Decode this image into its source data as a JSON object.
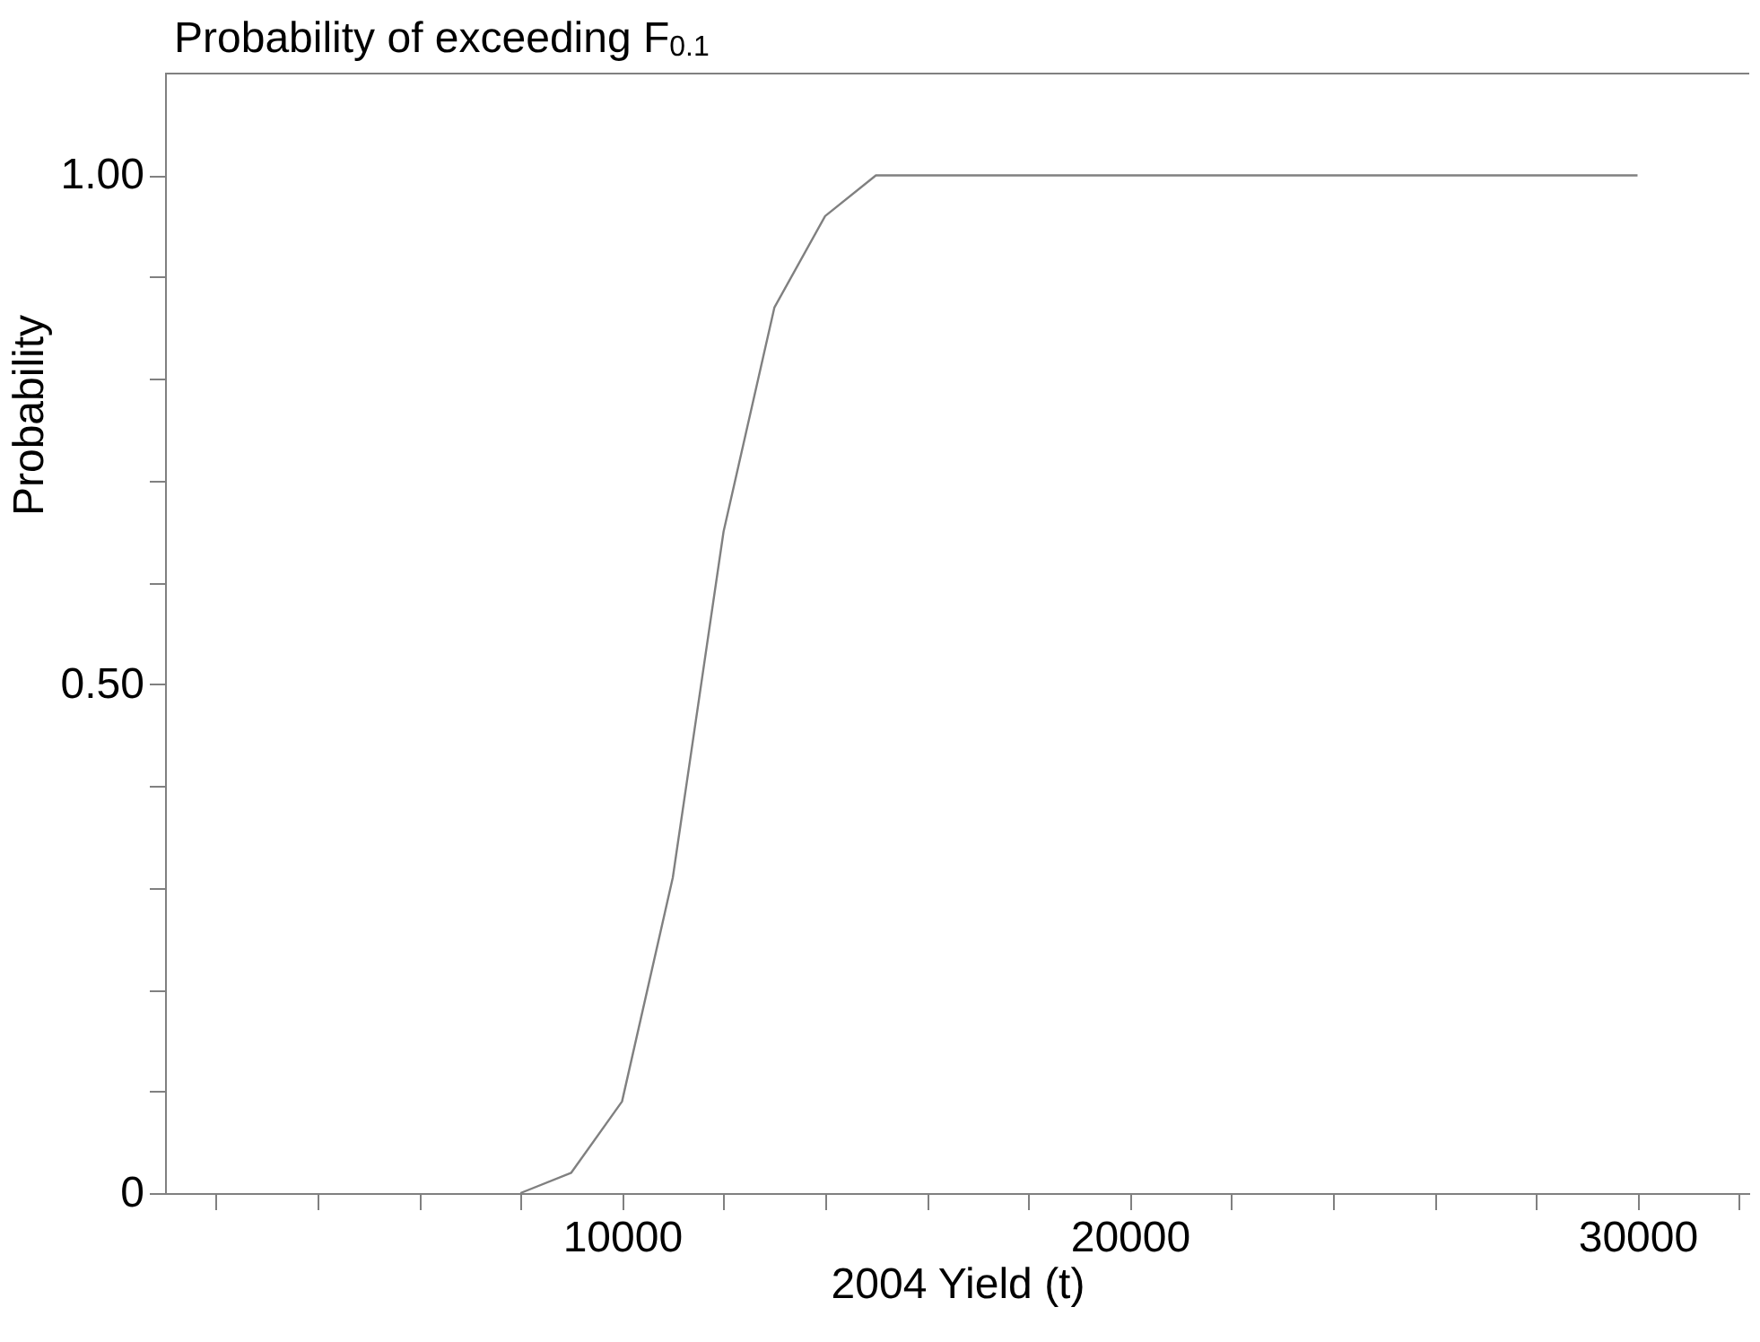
{
  "chart_data": {
    "type": "line",
    "title": "Probability of exceeding F$_{0.1}$",
    "xlabel": "2004 Yield (t)",
    "ylabel": "Probability",
    "x": [
      8000,
      9000,
      10000,
      11000,
      12000,
      13000,
      14000,
      15000,
      16000,
      30000
    ],
    "series": [
      {
        "color": "#808080",
        "values": [
          0,
          0.02,
          0.09,
          0.31,
          0.65,
          0.87,
          0.96,
          1.0,
          1.0,
          1.0
        ]
      }
    ],
    "xlim": [
      1000,
      32200
    ],
    "xticks": [
      {
        "value": 2000,
        "label": null
      },
      {
        "value": 4000,
        "label": null
      },
      {
        "value": 6000,
        "label": null
      },
      {
        "value": 8000,
        "label": null
      },
      10000,
      {
        "value": 12000,
        "label": null
      },
      {
        "value": 14000,
        "label": null
      },
      {
        "value": 16000,
        "label": null
      },
      {
        "value": 18000,
        "label": null
      },
      20000,
      {
        "value": 22000,
        "label": null
      },
      {
        "value": 24000,
        "label": null
      },
      {
        "value": 26000,
        "label": null
      },
      {
        "value": 28000,
        "label": null
      },
      30000,
      {
        "value": 32000,
        "label": null
      }
    ],
    "ylim": [
      0,
      1.1
    ],
    "yticks": [
      0,
      {
        "value": 0.1,
        "label": null
      },
      {
        "value": 0.2,
        "label": null
      },
      {
        "value": 0.3,
        "label": null
      },
      {
        "value": 0.4,
        "label": null
      },
      {
        "value": 0.5,
        "label": "0.50"
      },
      {
        "value": 0.6,
        "label": null
      },
      {
        "value": 0.7,
        "label": null
      },
      {
        "value": 0.8,
        "label": null
      },
      {
        "value": 0.9,
        "label": null
      },
      {
        "value": 1.0,
        "label": "1.00"
      }
    ],
    "grid": false,
    "marker": "none",
    "line_style": "solid"
  }
}
